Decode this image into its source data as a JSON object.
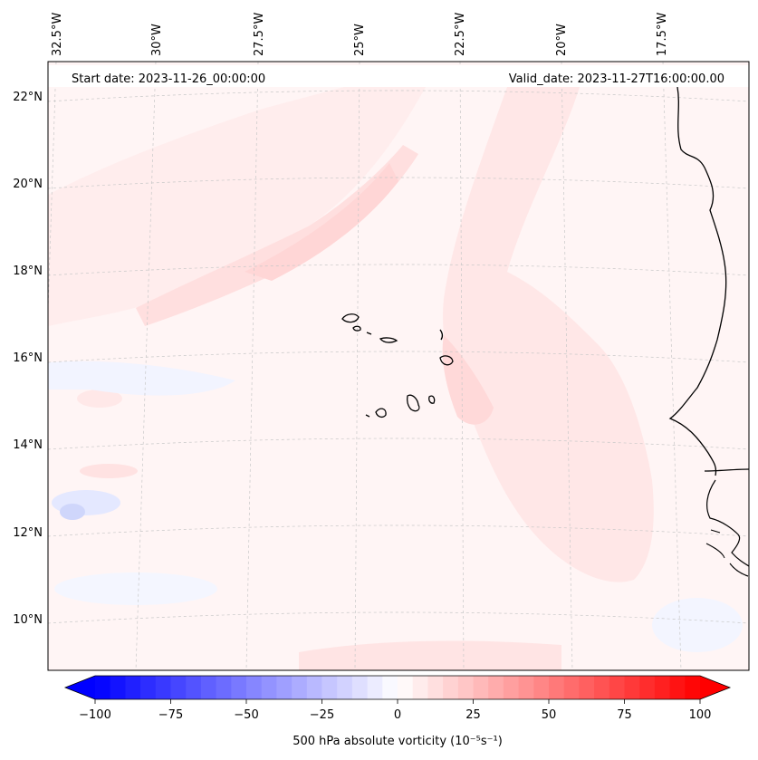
{
  "map": {
    "start_date": "Start date: 2023-11-26_00:00:00",
    "valid_date": "Valid_date: 2023-11-27T16:00:00.00",
    "lon_labels": [
      "32.5°W",
      "30°W",
      "27.5°W",
      "25°W",
      "22.5°W",
      "20°W",
      "17.5°W"
    ],
    "lat_labels": [
      "22°N",
      "20°N",
      "18°N",
      "16°N",
      "14°N",
      "12°N",
      "10°N"
    ],
    "colorbar": {
      "title": "500 hPa absolute vorticity (10⁻⁵s⁻¹)",
      "min": -100,
      "max": 100,
      "step": 5,
      "ticks": [
        {
          "value": -100,
          "label": "−100"
        },
        {
          "value": -75,
          "label": "−75"
        },
        {
          "value": -50,
          "label": "−50"
        },
        {
          "value": -25,
          "label": "−25"
        },
        {
          "value": 0,
          "label": "0"
        },
        {
          "value": 25,
          "label": "25"
        },
        {
          "value": 50,
          "label": "50"
        },
        {
          "value": 75,
          "label": "75"
        },
        {
          "value": 100,
          "label": "100"
        }
      ],
      "neg_color": "#0000ff",
      "pos_color": "#ff0000"
    },
    "field_colors": {
      "background": "#fff5f5",
      "light_pos": "#ffe6e6",
      "mid_pos": "#ffdcdc",
      "light_neg": "#f2f4ff",
      "mid_neg": "#dfe4ff",
      "strong_neg": "#c6cff9"
    }
  }
}
